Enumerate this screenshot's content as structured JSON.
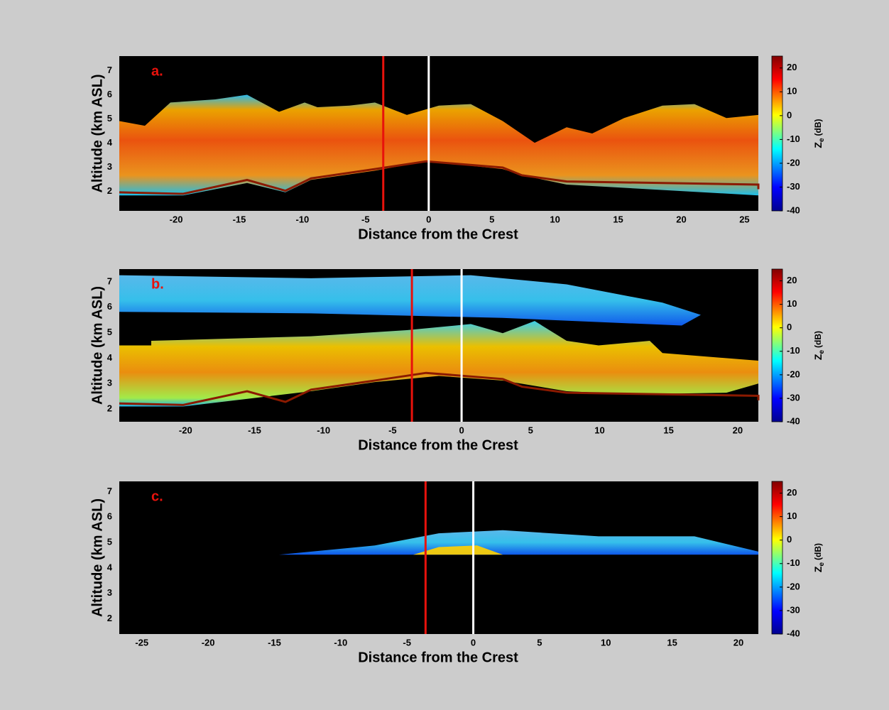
{
  "chart_data": [
    {
      "type": "image",
      "panel_label": "a.",
      "xlabel": "Distance from the Crest",
      "ylabel": "Altitude (km ASL)",
      "xlim": [
        -24.5,
        26.1
      ],
      "xticks": [
        -20,
        -15,
        -10,
        -5,
        0,
        5,
        10,
        15,
        20,
        25
      ],
      "ylim": [
        1.2,
        7.6
      ],
      "yticks": [
        2,
        3,
        4,
        5,
        6,
        7
      ],
      "vlines": [
        {
          "x": -3.6,
          "color": "#e8120c"
        },
        {
          "x": 0,
          "color": "#ffffff"
        }
      ],
      "colorbar": {
        "clim": [
          -40,
          25
        ],
        "ticks": [
          -40,
          -30,
          -20,
          -10,
          0,
          10,
          20
        ],
        "label": "Z",
        "label_sub": "e",
        "label_unit": "(dB)"
      }
    },
    {
      "type": "image",
      "panel_label": "b.",
      "xlabel": "Distance from the Crest",
      "ylabel": "Altitude (km ASL)",
      "xlim": [
        -24.8,
        21.5
      ],
      "xticks": [
        -20,
        -15,
        -10,
        -5,
        0,
        5,
        10,
        15,
        20
      ],
      "ylim": [
        1.5,
        7.5
      ],
      "yticks": [
        2,
        3,
        4,
        5,
        6,
        7
      ],
      "vlines": [
        {
          "x": -3.6,
          "color": "#e8120c"
        },
        {
          "x": 0,
          "color": "#ffffff"
        }
      ],
      "colorbar": {
        "clim": [
          -40,
          25
        ],
        "ticks": [
          -40,
          -30,
          -20,
          -10,
          0,
          10,
          20
        ],
        "label": "Z",
        "label_sub": "e",
        "label_unit": "(dB)"
      }
    },
    {
      "type": "image",
      "panel_label": "c.",
      "xlabel": "Distance from the Crest",
      "ylabel": "Altitude (km ASL)",
      "xlim": [
        -26.7,
        21.5
      ],
      "xticks": [
        -25,
        -20,
        -15,
        -10,
        -5,
        0,
        5,
        10,
        15,
        20
      ],
      "ylim": [
        1.4,
        7.4
      ],
      "yticks": [
        2,
        3,
        4,
        5,
        6,
        7
      ],
      "vlines": [
        {
          "x": -3.6,
          "color": "#e8120c"
        },
        {
          "x": 0,
          "color": "#ffffff"
        }
      ],
      "colorbar": {
        "clim": [
          -40,
          25
        ],
        "ticks": [
          -40,
          -30,
          -20,
          -10,
          0,
          10,
          20
        ],
        "label": "Z",
        "label_sub": "e",
        "label_unit": "(dB)"
      }
    }
  ]
}
